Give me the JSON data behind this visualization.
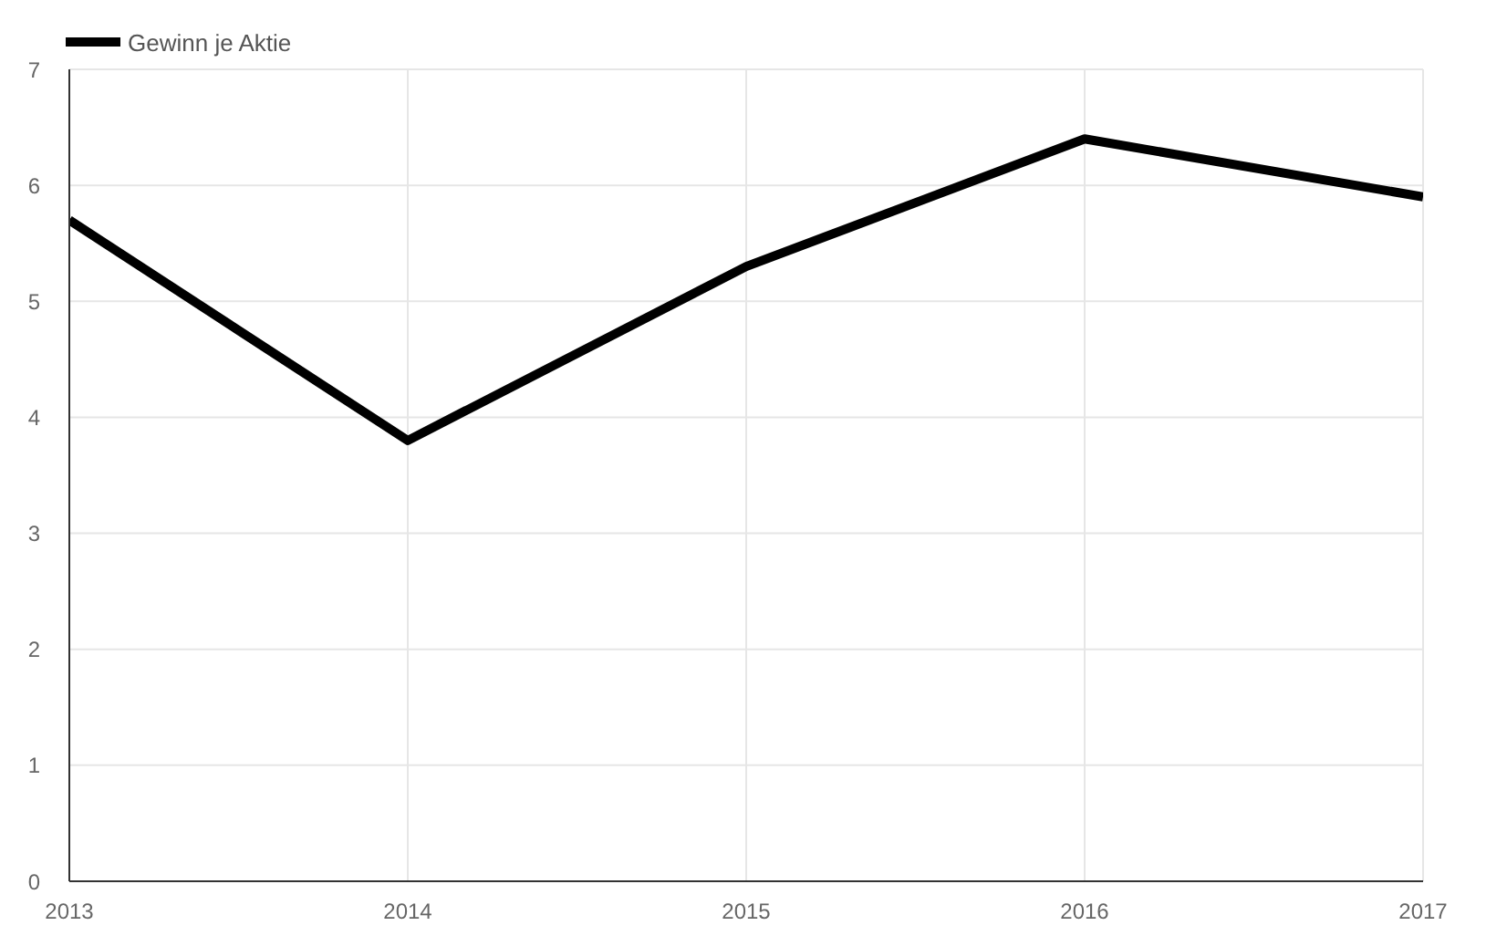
{
  "chart_data": {
    "type": "line",
    "x": [
      2013,
      2014,
      2015,
      2016,
      2017
    ],
    "series": [
      {
        "name": "Gewinn je Aktie",
        "color": "#000000",
        "values": [
          5.7,
          3.8,
          5.3,
          6.4,
          5.9
        ]
      }
    ],
    "xlim": [
      2013,
      2017
    ],
    "xticks": [
      2013,
      2014,
      2015,
      2016,
      2017
    ],
    "ylim": [
      0,
      7
    ],
    "yticks": [
      0,
      1,
      2,
      3,
      4,
      5,
      6,
      7
    ],
    "grid": true,
    "legend": "top left",
    "marker": "none",
    "line_style": "solid"
  }
}
